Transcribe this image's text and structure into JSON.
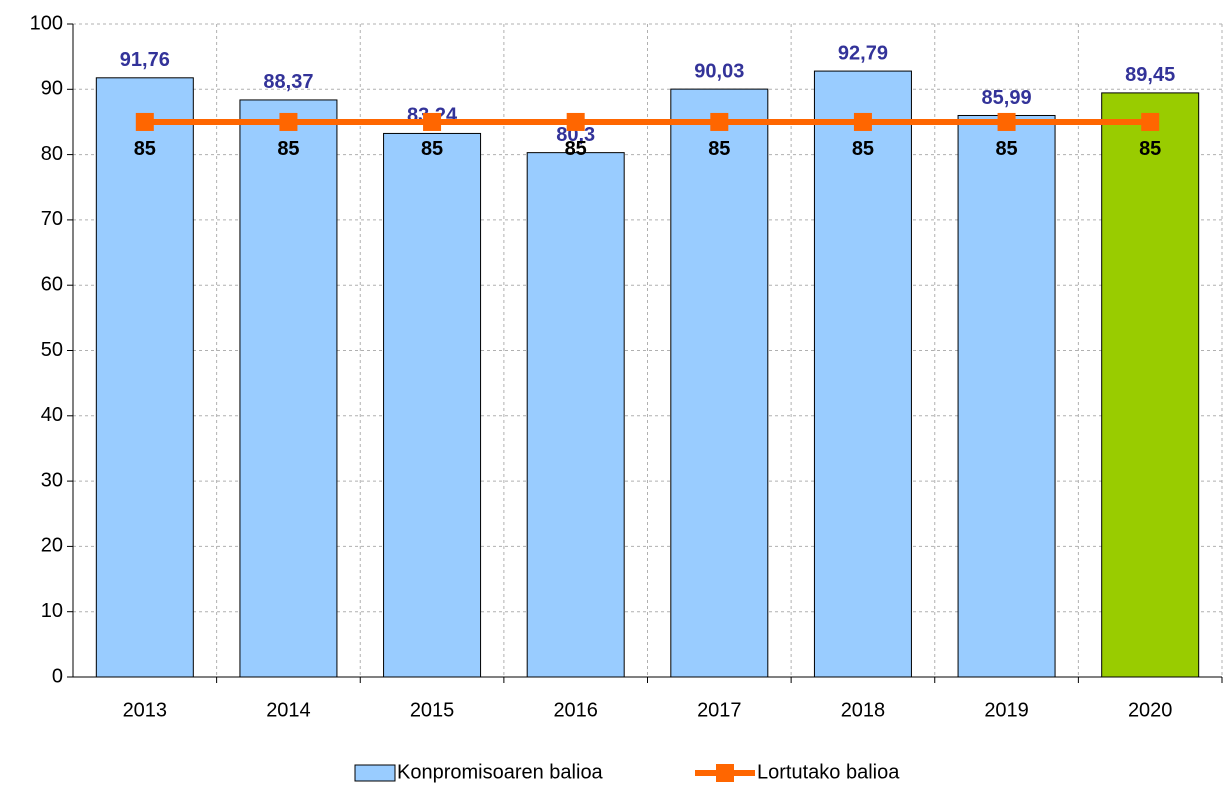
{
  "chart_data": {
    "type": "bar",
    "categories": [
      "2013",
      "2014",
      "2015",
      "2016",
      "2017",
      "2018",
      "2019",
      "2020"
    ],
    "series": [
      {
        "name": "Konpromisoaren balioa",
        "type": "bar",
        "color": "#99ccff",
        "colors": [
          "#99ccff",
          "#99ccff",
          "#99ccff",
          "#99ccff",
          "#99ccff",
          "#99ccff",
          "#99ccff",
          "#99cc00"
        ],
        "values": [
          91.76,
          88.37,
          83.24,
          80.3,
          90.03,
          92.79,
          85.99,
          89.45
        ],
        "value_labels": [
          "91,76",
          "88,37",
          "83,24",
          "80,3",
          "90,03",
          "92,79",
          "85,99",
          "89,45"
        ]
      },
      {
        "name": "Lortutako balioa",
        "type": "line",
        "color": "#ff6600",
        "values": [
          85,
          85,
          85,
          85,
          85,
          85,
          85,
          85
        ]
      }
    ],
    "ylim": [
      0,
      100
    ],
    "yticks": [
      0,
      10,
      20,
      30,
      40,
      50,
      60,
      70,
      80,
      90,
      100
    ],
    "grid": true,
    "legend": "bottom"
  }
}
